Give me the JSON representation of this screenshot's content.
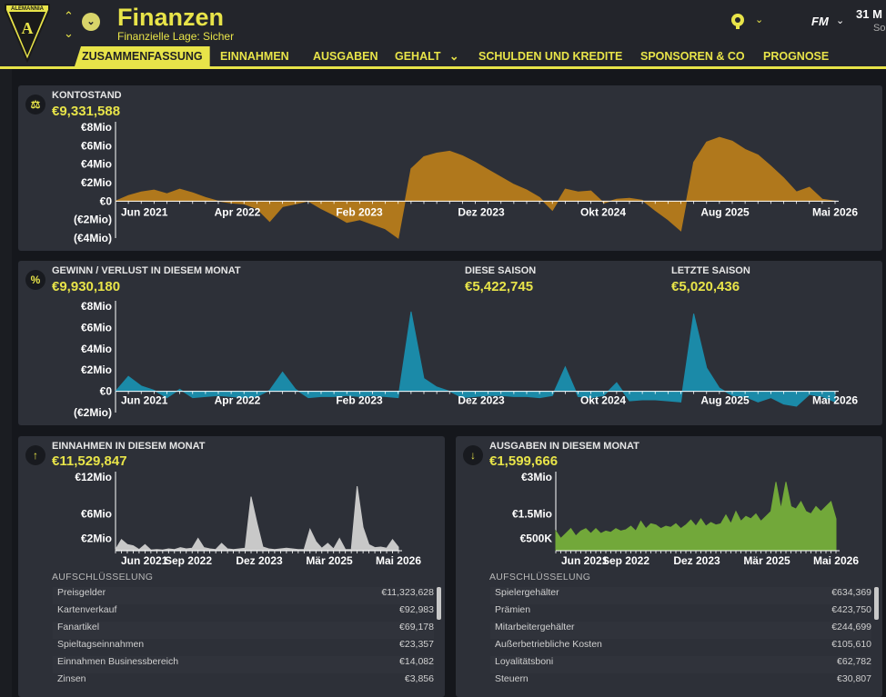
{
  "header": {
    "title": "Finanzen",
    "subtitle": "Finanzielle Lage: Sicher",
    "club_logo_text": "ALEMANNIA",
    "fm_label": "FM",
    "date": "31 M",
    "day": "So",
    "accent_color": "#e8e449"
  },
  "tabs": [
    {
      "label": "ZUSAMMENFASSUNG",
      "active": true
    },
    {
      "label": "EINNAHMEN"
    },
    {
      "label": "AUSGABEN"
    },
    {
      "label": "GEHALT"
    },
    {
      "label": "SCHULDEN UND KREDITE"
    },
    {
      "label": "SPONSOREN & CO"
    },
    {
      "label": "PROGNOSE"
    }
  ],
  "balance": {
    "label": "KONTOSTAND",
    "value": "€9,331,588"
  },
  "profit": {
    "label": "GEWINN / VERLUST IN DIESEM MONAT",
    "value": "€9,930,180",
    "season_label": "DIESE SAISON",
    "season_value": "€5,422,745",
    "last_label": "LETZTE SAISON",
    "last_value": "€5,020,436"
  },
  "income": {
    "label": "EINNAHMEN IN DIESEM MONAT",
    "value": "€11,529,847",
    "breakdown_title": "AUFSCHLÜSSELUNG",
    "rows": [
      {
        "name": "Preisgelder",
        "value": "€11,323,628"
      },
      {
        "name": "Kartenverkauf",
        "value": "€92,983"
      },
      {
        "name": "Fanartikel",
        "value": "€69,178"
      },
      {
        "name": "Spieltagseinnahmen",
        "value": "€23,357"
      },
      {
        "name": "Einnahmen Businessbereich",
        "value": "€14,082"
      },
      {
        "name": "Zinsen",
        "value": "€3,856"
      }
    ]
  },
  "expenses": {
    "label": "AUSGABEN IN DIESEM MONAT",
    "value": "€1,599,666",
    "breakdown_title": "AUFSCHLÜSSELUNG",
    "rows": [
      {
        "name": "Spielergehälter",
        "value": "€634,369"
      },
      {
        "name": "Prämien",
        "value": "€423,750"
      },
      {
        "name": "Mitarbeitergehälter",
        "value": "€244,699"
      },
      {
        "name": "Außerbetriebliche Kosten",
        "value": "€105,610"
      },
      {
        "name": "Loyalitätsboni",
        "value": "€62,782"
      },
      {
        "name": "Steuern",
        "value": "€30,807"
      }
    ]
  },
  "chart_data": [
    {
      "type": "area",
      "title": "KONTOSTAND",
      "color": "#b0781c",
      "ylim": [
        -4,
        8
      ],
      "y_ticks": [
        "€8Mio",
        "€6Mio",
        "€4Mio",
        "€2Mio",
        "€0",
        "(€2Mio)",
        "(€4Mio)"
      ],
      "x_tick_labels": [
        "Jun 2021",
        "Apr 2022",
        "Feb 2023",
        "Dez 2023",
        "Okt 2024",
        "Aug 2025",
        "Mai 2026"
      ],
      "unit": "Mio €",
      "values": [
        0,
        0.6,
        1.0,
        1.2,
        0.8,
        1.3,
        0.9,
        0.4,
        0,
        -0.2,
        -0.3,
        -0.8,
        -2.2,
        -0.6,
        -0.3,
        0,
        -0.8,
        -1.5,
        -2.3,
        -2.0,
        -2.5,
        -3.0,
        -4.0,
        3.5,
        4.8,
        5.2,
        5.4,
        4.9,
        4.2,
        3.4,
        2.6,
        1.8,
        1.2,
        0.4,
        -1.0,
        1.3,
        1.0,
        1.1,
        -0.2,
        0.2,
        0.3,
        0.1,
        -1.0,
        -2.0,
        -3.2,
        4.2,
        6.4,
        6.9,
        6.5,
        5.6,
        5.0,
        3.8,
        2.5,
        1.0,
        1.5,
        0.2,
        0
      ]
    },
    {
      "type": "area",
      "title": "GEWINN / VERLUST IN DIESEM MONAT",
      "color": "#1b8aa8",
      "ylim": [
        -2,
        8
      ],
      "y_ticks": [
        "€8Mio",
        "€6Mio",
        "€4Mio",
        "€2Mio",
        "€0",
        "(€2Mio)"
      ],
      "x_tick_labels": [
        "Jun 2021",
        "Apr 2022",
        "Feb 2023",
        "Dez 2023",
        "Okt 2024",
        "Aug 2025",
        "Mai 2026"
      ],
      "unit": "Mio €",
      "values": [
        0,
        1.4,
        0.5,
        0.1,
        -0.6,
        0.2,
        -0.6,
        -0.5,
        -0.4,
        -0.5,
        -0.6,
        -0.5,
        0.1,
        1.8,
        0.2,
        -0.6,
        -0.5,
        -0.5,
        -0.4,
        -0.5,
        -0.4,
        -0.5,
        -0.6,
        7.5,
        1.2,
        0.4,
        0,
        -0.6,
        -0.5,
        -0.4,
        -0.4,
        -0.5,
        -0.5,
        -0.6,
        -0.4,
        2.3,
        -0.5,
        -0.6,
        -0.4,
        0.8,
        -0.9,
        -0.8,
        -0.8,
        -0.9,
        -1.0,
        7.3,
        2.2,
        0.3,
        -0.4,
        -0.5,
        -1.0,
        -0.6,
        -1.2,
        -1.4,
        -0.3,
        -0.5,
        -1.0
      ]
    },
    {
      "type": "area",
      "title": "EINNAHMEN IN DIESEM MONAT",
      "color": "#c8c8c8",
      "ylim": [
        0,
        12
      ],
      "y_ticks": [
        "€12Mio",
        "€6Mio",
        "€2Mio"
      ],
      "x_tick_labels": [
        "Jun 2021",
        "Sep 2022",
        "Dez 2023",
        "Mär 2025",
        "Mai 2026"
      ],
      "unit": "Mio €",
      "values": [
        0.2,
        1.8,
        1.0,
        0.8,
        0.2,
        1.0,
        0.1,
        0.2,
        0.1,
        0.3,
        0.2,
        0.5,
        0.3,
        0.4,
        2.0,
        0.5,
        0.3,
        0.2,
        1.2,
        0.3,
        0.2,
        0.3,
        0.4,
        8.8,
        4.5,
        0.6,
        0.3,
        0.2,
        0.3,
        0.4,
        0.3,
        0.2,
        0.2,
        3.5,
        1.5,
        0.4,
        1.2,
        0.3,
        2.0,
        0.2,
        0.2,
        10.5,
        3.8,
        1.0,
        0.5,
        0.6,
        0.4,
        1.8,
        0.6
      ]
    },
    {
      "type": "area",
      "title": "AUSGABEN IN DIESEM MONAT",
      "color": "#72a83a",
      "ylim": [
        0,
        3
      ],
      "y_ticks": [
        "€3Mio",
        "€1.5Mio",
        "€500K"
      ],
      "x_tick_labels": [
        "Jun 2021",
        "Sep 2022",
        "Dez 2023",
        "Mär 2025",
        "Mai 2026"
      ],
      "unit": "Mio €",
      "values": [
        0.8,
        0.5,
        0.7,
        0.9,
        0.6,
        0.8,
        0.9,
        0.7,
        0.9,
        0.7,
        0.8,
        0.75,
        0.9,
        0.8,
        0.85,
        1.0,
        0.8,
        1.2,
        0.9,
        1.1,
        1.05,
        0.9,
        1.0,
        0.95,
        1.1,
        0.9,
        1.05,
        1.25,
        1.0,
        1.3,
        1.0,
        1.15,
        1.05,
        1.1,
        1.45,
        1.1,
        1.6,
        1.2,
        1.4,
        1.3,
        1.5,
        1.2,
        1.4,
        1.6,
        2.8,
        1.7,
        2.8,
        1.8,
        1.7,
        2.0,
        1.6,
        1.5,
        1.8,
        1.6,
        1.8,
        2.0,
        1.3
      ]
    }
  ]
}
